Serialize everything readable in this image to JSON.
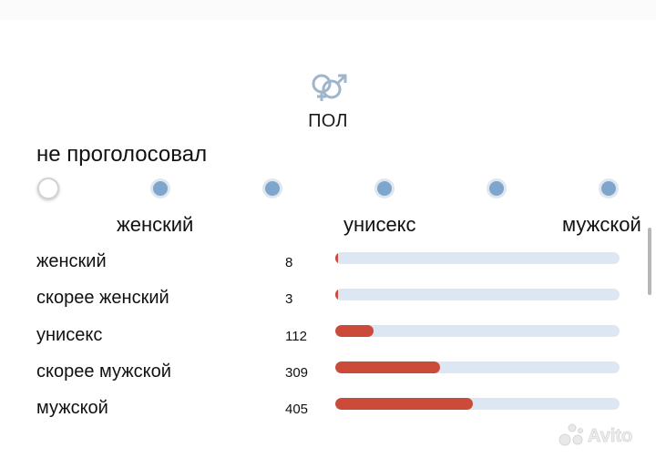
{
  "section": {
    "icon": "gender-icon",
    "title": "ПОЛ"
  },
  "vote_status": "не проголосовал",
  "slider": {
    "positions": 6,
    "selected_index": 0
  },
  "scale_labels": {
    "left": "женский",
    "center": "унисекс",
    "right": "мужской"
  },
  "results": [
    {
      "label": "женский",
      "count": "8",
      "fraction": 0.01
    },
    {
      "label": "скорее женский",
      "count": "3",
      "fraction": 0.004
    },
    {
      "label": "унисекс",
      "count": "112",
      "fraction": 0.135
    },
    {
      "label": "скорее мужской",
      "count": "309",
      "fraction": 0.37
    },
    {
      "label": "мужской",
      "count": "405",
      "fraction": 0.485
    }
  ],
  "watermark": {
    "icon": "avito-logo",
    "text": "Avito"
  },
  "colors": {
    "bar_fill": "#cc4a3a",
    "bar_track": "#dce7f3",
    "dot": "#7ea6cc",
    "icon": "#9fb5cc"
  }
}
